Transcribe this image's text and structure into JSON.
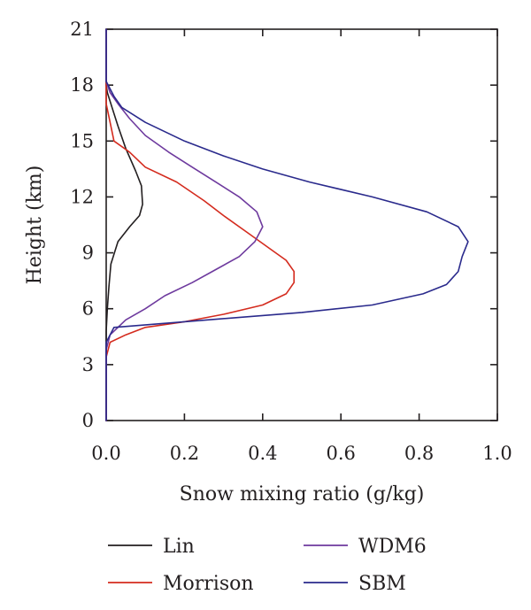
{
  "chart_data": {
    "type": "line",
    "xlabel": "Snow mixing ratio (g/kg)",
    "ylabel": "Height (km)",
    "xlim": [
      0.0,
      1.0
    ],
    "ylim": [
      0,
      21
    ],
    "x_ticks": [
      0.0,
      0.2,
      0.4,
      0.6,
      0.8,
      1.0
    ],
    "x_tick_labels": [
      "0.0",
      "0.2",
      "0.4",
      "0.6",
      "0.8",
      "1.0"
    ],
    "y_ticks": [
      0,
      3,
      6,
      9,
      12,
      15,
      18,
      21
    ],
    "y_tick_labels": [
      "0",
      "3",
      "6",
      "9",
      "12",
      "15",
      "18",
      "21"
    ],
    "grid": false,
    "legend_position": "bottom",
    "series": [
      {
        "name": "Lin",
        "color": "#231f20",
        "points": [
          [
            0.0,
            0.0
          ],
          [
            0.0,
            4.8
          ],
          [
            0.003,
            6.0
          ],
          [
            0.007,
            7.2
          ],
          [
            0.012,
            8.4
          ],
          [
            0.03,
            9.6
          ],
          [
            0.06,
            10.4
          ],
          [
            0.085,
            11.0
          ],
          [
            0.093,
            11.6
          ],
          [
            0.09,
            12.6
          ],
          [
            0.075,
            13.4
          ],
          [
            0.05,
            14.6
          ],
          [
            0.03,
            15.8
          ],
          [
            0.015,
            16.8
          ],
          [
            0.003,
            17.6
          ],
          [
            0.0,
            18.0
          ],
          [
            0.0,
            21.0
          ]
        ]
      },
      {
        "name": "Morrison",
        "color": "#d42b1e",
        "points": [
          [
            0.0,
            0.0
          ],
          [
            0.0,
            3.4
          ],
          [
            0.01,
            4.2
          ],
          [
            0.05,
            4.6
          ],
          [
            0.1,
            5.0
          ],
          [
            0.2,
            5.3
          ],
          [
            0.3,
            5.7
          ],
          [
            0.4,
            6.2
          ],
          [
            0.46,
            6.8
          ],
          [
            0.48,
            7.4
          ],
          [
            0.48,
            8.0
          ],
          [
            0.46,
            8.6
          ],
          [
            0.42,
            9.2
          ],
          [
            0.36,
            10.1
          ],
          [
            0.3,
            11.0
          ],
          [
            0.25,
            11.8
          ],
          [
            0.18,
            12.8
          ],
          [
            0.1,
            13.6
          ],
          [
            0.06,
            14.4
          ],
          [
            0.02,
            15.0
          ],
          [
            0.01,
            16.0
          ],
          [
            0.0,
            17.0
          ],
          [
            0.0,
            18.0
          ],
          [
            0.0,
            21.0
          ]
        ]
      },
      {
        "name": "WDM6",
        "color": "#6e3a9e",
        "points": [
          [
            0.0,
            0.0
          ],
          [
            0.0,
            3.8
          ],
          [
            0.01,
            4.6
          ],
          [
            0.05,
            5.4
          ],
          [
            0.1,
            6.0
          ],
          [
            0.15,
            6.7
          ],
          [
            0.22,
            7.4
          ],
          [
            0.28,
            8.1
          ],
          [
            0.34,
            8.8
          ],
          [
            0.38,
            9.6
          ],
          [
            0.4,
            10.4
          ],
          [
            0.385,
            11.2
          ],
          [
            0.34,
            12.0
          ],
          [
            0.28,
            12.8
          ],
          [
            0.22,
            13.6
          ],
          [
            0.16,
            14.4
          ],
          [
            0.1,
            15.3
          ],
          [
            0.06,
            16.2
          ],
          [
            0.03,
            17.0
          ],
          [
            0.01,
            17.6
          ],
          [
            0.0,
            18.2
          ],
          [
            0.0,
            21.0
          ]
        ]
      },
      {
        "name": "SBM",
        "color": "#2a2a8c",
        "points": [
          [
            0.0,
            0.0
          ],
          [
            0.0,
            4.2
          ],
          [
            0.02,
            5.0
          ],
          [
            0.2,
            5.3
          ],
          [
            0.5,
            5.8
          ],
          [
            0.68,
            6.2
          ],
          [
            0.81,
            6.8
          ],
          [
            0.87,
            7.3
          ],
          [
            0.9,
            8.0
          ],
          [
            0.91,
            8.8
          ],
          [
            0.925,
            9.6
          ],
          [
            0.9,
            10.4
          ],
          [
            0.82,
            11.2
          ],
          [
            0.68,
            12.0
          ],
          [
            0.52,
            12.8
          ],
          [
            0.4,
            13.5
          ],
          [
            0.3,
            14.2
          ],
          [
            0.2,
            15.0
          ],
          [
            0.1,
            16.0
          ],
          [
            0.04,
            16.8
          ],
          [
            0.02,
            17.4
          ],
          [
            0.01,
            17.8
          ],
          [
            0.0,
            18.2
          ],
          [
            0.0,
            21.0
          ]
        ]
      }
    ]
  }
}
